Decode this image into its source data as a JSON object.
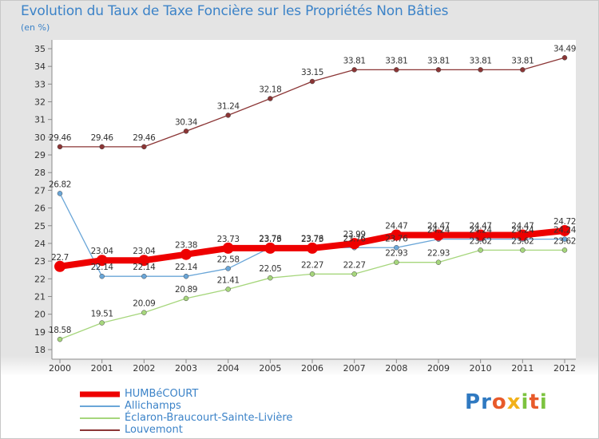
{
  "title": "Evolution du Taux de Taxe Foncière sur les Propriétés Non Bâties",
  "unit_label": "(en %)",
  "logo_text": "Proxiti",
  "chart_data": {
    "type": "line",
    "title": "Evolution du Taux de Taxe Foncière sur les Propriétés Non Bâties",
    "ylabel": "(en %)",
    "xlabel": "",
    "x": [
      "2000",
      "2001",
      "2002",
      "2003",
      "2004",
      "2005",
      "2006",
      "2007",
      "2008",
      "2009",
      "2010",
      "2011",
      "2012"
    ],
    "ylim": [
      18,
      35
    ],
    "yticks": [
      18,
      19,
      20,
      21,
      22,
      23,
      24,
      25,
      26,
      27,
      28,
      29,
      30,
      31,
      32,
      33,
      34,
      35
    ],
    "grid": false,
    "legend_position": "bottom-left",
    "series": [
      {
        "name": "HUMBéCOURT",
        "color": "#ee0000",
        "emphasis": true,
        "values": [
          22.7,
          23.04,
          23.04,
          23.38,
          23.73,
          23.73,
          23.73,
          23.99,
          24.47,
          24.47,
          24.47,
          24.47,
          24.72
        ],
        "labels": [
          "22.7",
          "23.04",
          "23.04",
          "23.38",
          "23.73",
          "23.73",
          "23.73",
          "23.99",
          "24.47",
          "24.47",
          "24.47",
          "24.47",
          "24.72"
        ]
      },
      {
        "name": "Allichamps",
        "color": "#6aa6d8",
        "emphasis": false,
        "values": [
          26.82,
          22.14,
          22.14,
          22.14,
          22.58,
          23.76,
          23.76,
          23.76,
          23.76,
          24.24,
          24.24,
          24.24,
          24.24
        ],
        "labels": [
          "26.82",
          "22.14",
          "22.14",
          "22.14",
          "22.58",
          "23.76",
          "23.76",
          "23.76",
          "23.76",
          "24.24",
          "24.24",
          "24.24",
          "24.24"
        ]
      },
      {
        "name": "Éclaron-Braucourt-Sainte-Livière",
        "color": "#a6d67c",
        "emphasis": false,
        "values": [
          18.58,
          19.51,
          20.09,
          20.89,
          21.41,
          22.05,
          22.27,
          22.27,
          22.93,
          22.93,
          23.62,
          23.62,
          23.62
        ],
        "labels": [
          "18.58",
          "19.51",
          "20.09",
          "20.89",
          "21.41",
          "22.05",
          "22.27",
          "22.27",
          "22.93",
          "22.93",
          "23.62",
          "23.62",
          "23.62"
        ]
      },
      {
        "name": "Louvemont",
        "color": "#8b3535",
        "emphasis": false,
        "values": [
          29.46,
          29.46,
          29.46,
          30.34,
          31.24,
          32.18,
          33.15,
          33.81,
          33.81,
          33.81,
          33.81,
          33.81,
          34.49
        ],
        "labels": [
          "29.46",
          "29.46",
          "29.46",
          "30.34",
          "31.24",
          "32.18",
          "33.15",
          "33.81",
          "33.81",
          "33.81",
          "33.81",
          "33.81",
          "34.49"
        ]
      }
    ]
  }
}
